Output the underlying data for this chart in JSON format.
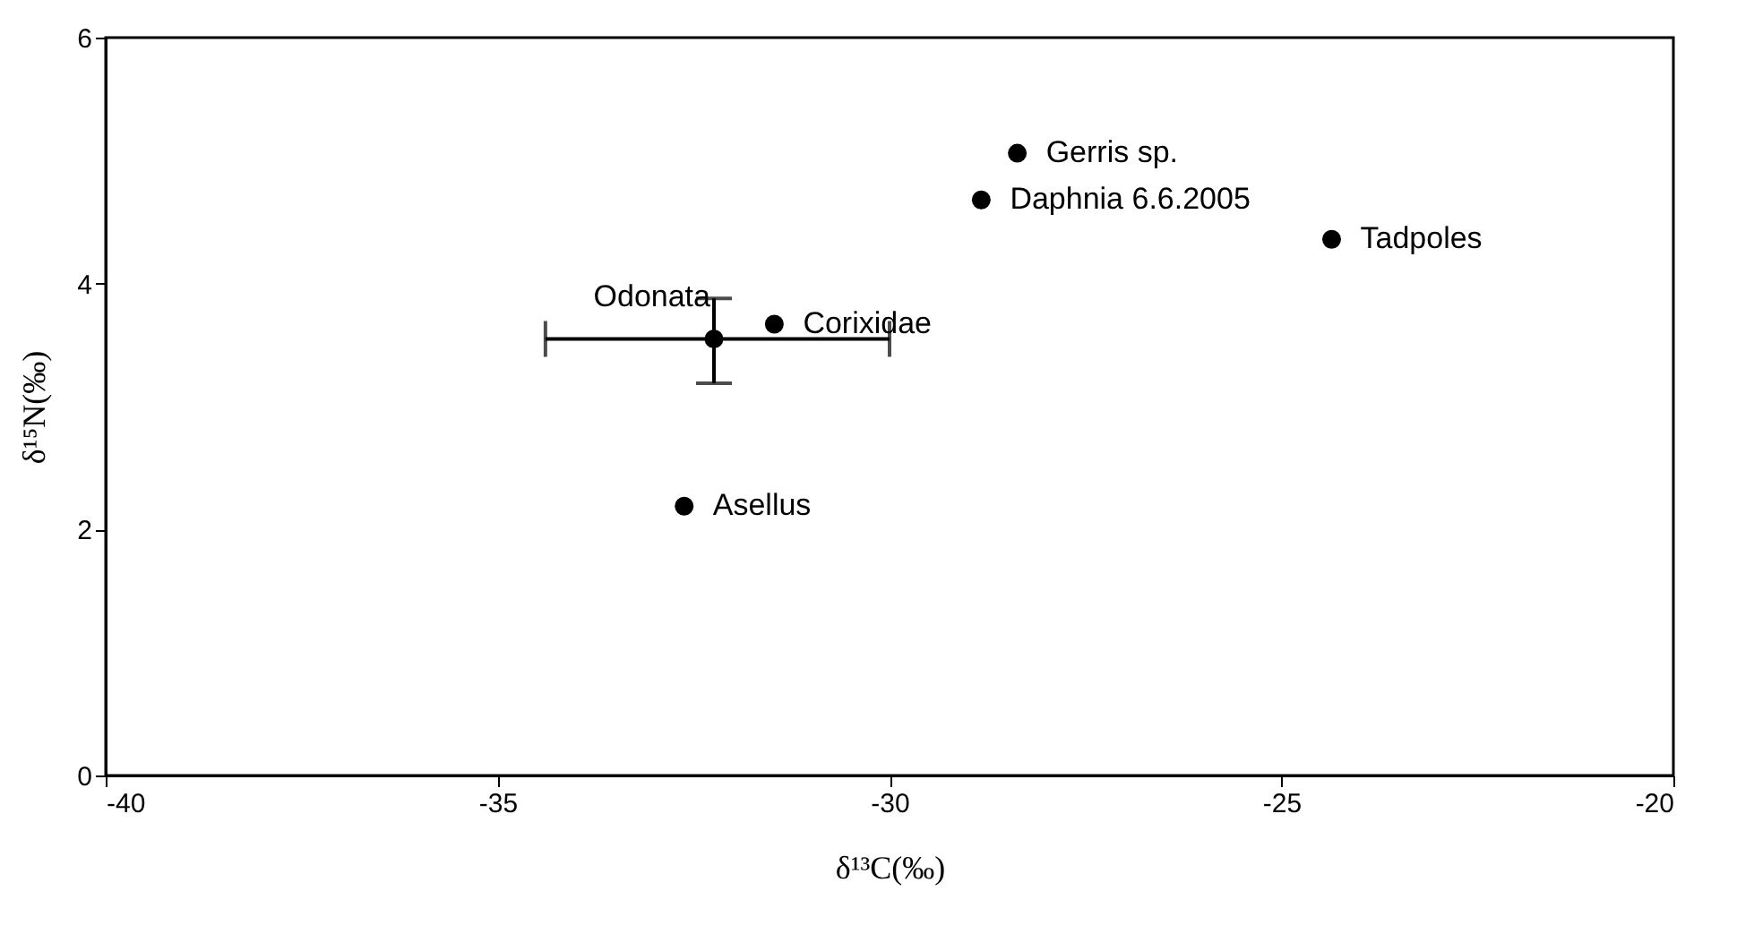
{
  "chart_data": {
    "type": "scatter",
    "xlabel": "δ¹³C(‰)",
    "ylabel": "δ¹⁵N(‰)",
    "x": [
      -28.37,
      -28.83,
      -24.36,
      -32.24,
      -31.47,
      -32.62
    ],
    "series": [
      {
        "color": "#000000",
        "values": [
          5.06,
          4.68,
          4.36,
          3.55,
          3.67,
          2.19
        ],
        "errors": [
          null,
          null,
          null,
          [
            3.19,
            3.88
          ],
          null,
          null
        ],
        "xerrors": [
          null,
          null,
          null,
          [
            -34.39,
            -30.0
          ],
          null,
          null
        ]
      }
    ],
    "annotations": [
      {
        "text": "Gerris sp.",
        "x": -28.37,
        "y": 5.06
      },
      {
        "text": "Daphnia 6.6.2005",
        "x": -28.83,
        "y": 4.68
      },
      {
        "text": "Tadpoles",
        "x": -24.36,
        "y": 4.36
      },
      {
        "text": "Odonata",
        "x": -32.24,
        "y": 3.55
      },
      {
        "text": "Corixidae",
        "x": -31.47,
        "y": 3.67
      },
      {
        "text": "Asellus",
        "x": -32.62,
        "y": 2.19
      }
    ],
    "xlim": [
      -40,
      -20
    ],
    "xticks": [
      -40,
      -35,
      -30,
      -25,
      -20
    ],
    "ylim": [
      0,
      6
    ],
    "yticks": [
      0,
      2,
      4,
      6
    ],
    "grid": false,
    "marker": "circle"
  }
}
